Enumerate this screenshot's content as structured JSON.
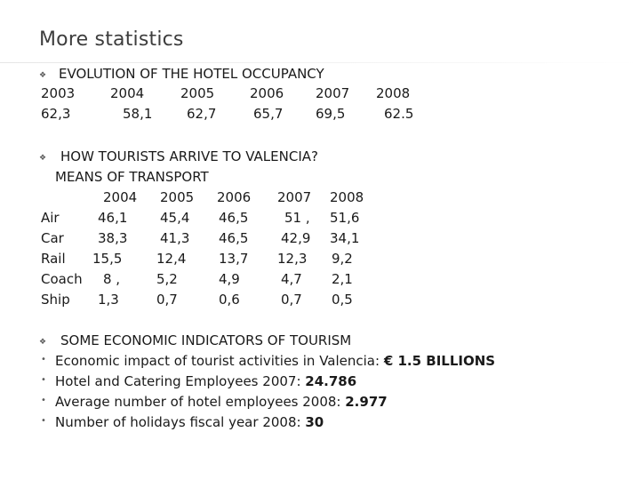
{
  "title": "More statistics",
  "occupancy": {
    "heading": "EVOLUTION OF THE HOTEL OCCUPANCY",
    "years": [
      "2003",
      "2004",
      "2005",
      "2006",
      "2007",
      "2008"
    ],
    "values": [
      "62,3",
      "58,1",
      "62,7",
      "65,7",
      "69,5",
      "62.5"
    ]
  },
  "transport": {
    "heading": "HOW TOURISTS ARRIVE TO VALENCIA?",
    "subheading": "MEANS OF TRANSPORT",
    "years": [
      "2004",
      "2005",
      "2006",
      "2007",
      "2008"
    ],
    "rows": [
      {
        "label": "Air",
        "values": [
          "46,1",
          "45,4",
          "46,5",
          "51 ,",
          "51,6"
        ]
      },
      {
        "label": "Car",
        "values": [
          "38,3",
          "41,3",
          "46,5",
          "42,9",
          "34,1"
        ]
      },
      {
        "label": "Rail",
        "values": [
          "15,5",
          "12,4",
          "13,7",
          "12,3",
          "9,2"
        ]
      },
      {
        "label": "Coach",
        "values": [
          "8 ,",
          "5,2",
          "4,9",
          "4,7",
          "2,1"
        ]
      },
      {
        "label": "Ship",
        "values": [
          "1,3",
          "0,7",
          "0,6",
          "0,7",
          "0,5"
        ]
      }
    ]
  },
  "indicators": {
    "heading": "SOME ECONOMIC INDICATORS OF TOURISM",
    "items": [
      {
        "text": "Economic impact of tourist activities in Valencia: ",
        "value": "€ 1.5 BILLIONS"
      },
      {
        "text": "Hotel and Catering Employees 2007: ",
        "value": "24.786"
      },
      {
        "text": "Average number of hotel employees 2008: ",
        "value": "2.977"
      },
      {
        "text": "Number of holidays fiscal year 2008: ",
        "value": "30"
      }
    ]
  }
}
